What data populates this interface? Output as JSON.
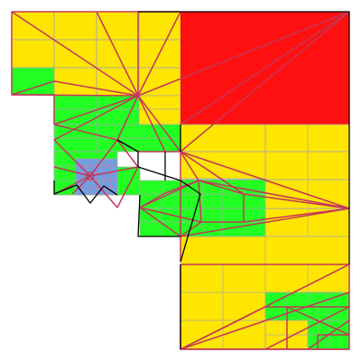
{
  "figure": {
    "kind": "adaptive mesh refinement diagram",
    "background": "#ffffff"
  },
  "palette": {
    "coarse": "#ffe600",
    "refined": "#22ff22",
    "fine": "#6fa0e0",
    "source": "#ff1010",
    "grid_line": "#a9a9a9",
    "mesh_edge": "#c4365a",
    "boundary": "#000000"
  },
  "legend": []
}
